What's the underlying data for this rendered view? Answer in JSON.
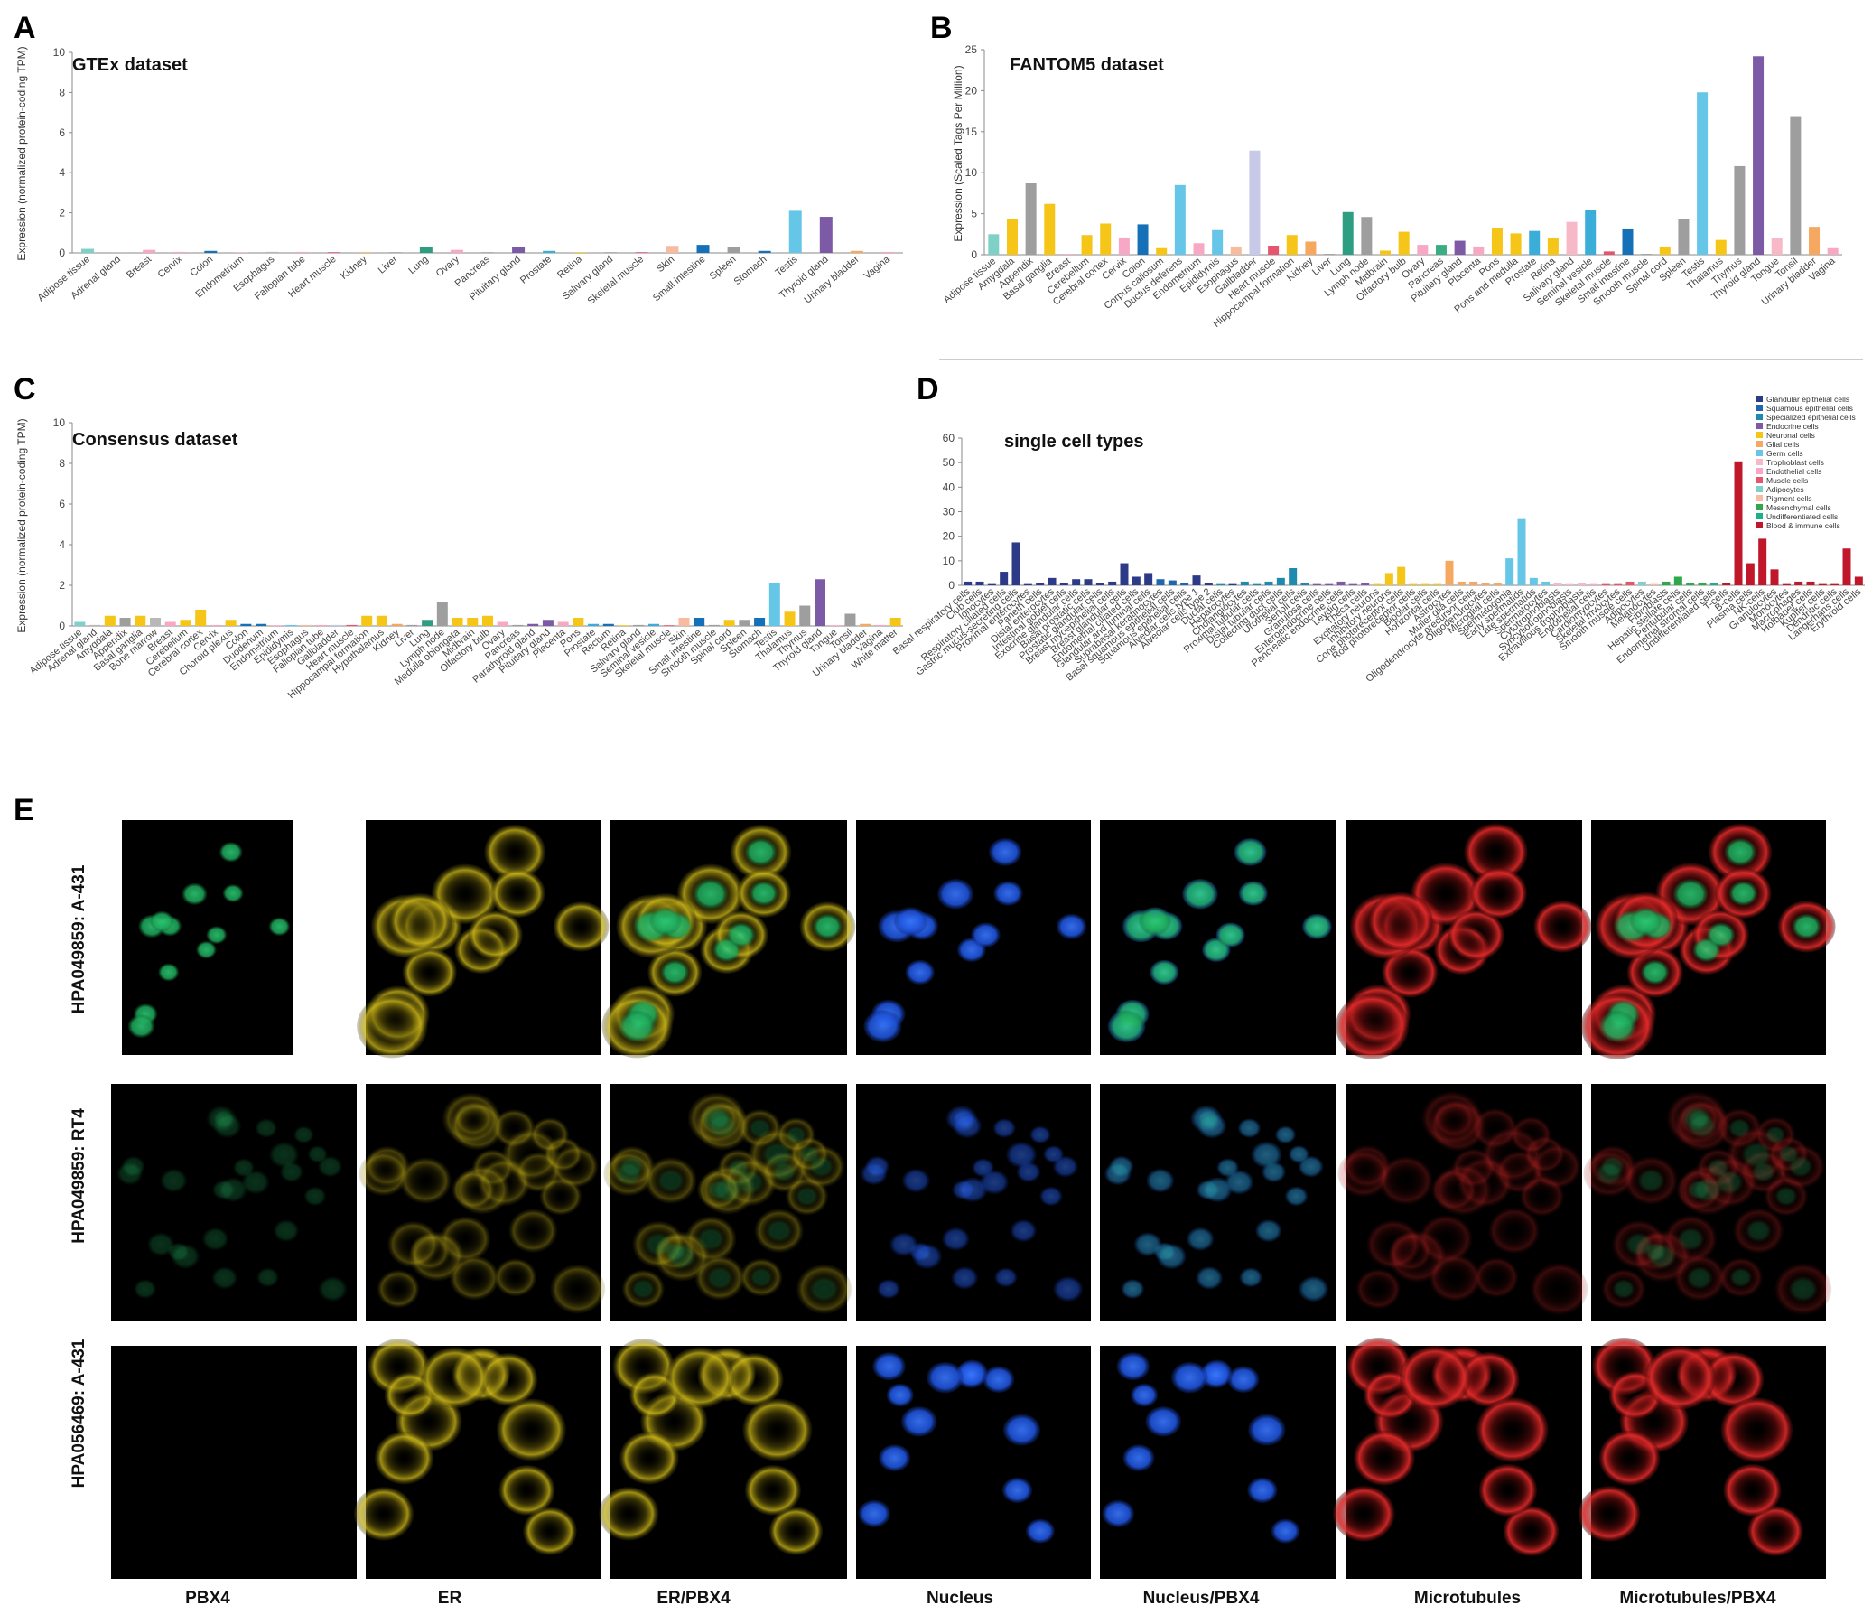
{
  "panel_letters": [
    "A",
    "B",
    "C",
    "D",
    "E"
  ],
  "chart_data": [
    {
      "id": "gtex",
      "type": "bar",
      "title": "GTEx dataset",
      "ylabel": "Expression (normalized protein-coding TPM)",
      "ylim": [
        0,
        10
      ],
      "yticks": [
        0,
        2,
        4,
        6,
        8,
        10
      ],
      "categories": [
        "Adipose tissue",
        "Adrenal gland",
        "Breast",
        "Cervix",
        "Colon",
        "Endometrium",
        "Esophagus",
        "Fallopian tube",
        "Heart muscle",
        "Kidney",
        "Liver",
        "Lung",
        "Ovary",
        "Pancreas",
        "Pituitary gland",
        "Prostate",
        "Retina",
        "Salivary gland",
        "Skeletal muscle",
        "Skin",
        "Small intestine",
        "Spleen",
        "Stomach",
        "Testis",
        "Thyroid gland",
        "Urinary bladder",
        "Vagina"
      ],
      "values": [
        0.2,
        0.02,
        0.15,
        0.05,
        0.1,
        0.02,
        0.05,
        0.05,
        0.02,
        0.05,
        0.02,
        0.3,
        0.15,
        0.02,
        0.3,
        0.1,
        0.02,
        0.02,
        0.02,
        0.35,
        0.4,
        0.3,
        0.1,
        2.1,
        1.8,
        0.1,
        0.05
      ],
      "colors": [
        "#7fd1c8",
        "#b8b8b8",
        "#f7a8c4",
        "#f7a8c4",
        "#1570b8",
        "#f7a8c4",
        "#b8b8b8",
        "#f7a8c4",
        "#e65570",
        "#f7c27f",
        "#9e9e9e",
        "#2e9e82",
        "#f7a8c4",
        "#9e9e9e",
        "#7d5aa6",
        "#3aaed8",
        "#f5c518",
        "#9e9e9e",
        "#e65570",
        "#f7bba0",
        "#1570b8",
        "#9e9e9e",
        "#1570b8",
        "#66c6e8",
        "#7d5aa6",
        "#f7a860",
        "#f7a8c4"
      ]
    },
    {
      "id": "fantom5",
      "type": "bar",
      "title": "FANTOM5 dataset",
      "ylabel": "Expression (Scaled Tags Per Million)",
      "ylim": [
        0,
        25
      ],
      "yticks": [
        0,
        5,
        10,
        15,
        20,
        25
      ],
      "categories": [
        "Adipose tissue",
        "Amygdala",
        "Appendix",
        "Basal ganglia",
        "Breast",
        "Cerebellum",
        "Cerebral cortex",
        "Cervix",
        "Colon",
        "Corpus callosum",
        "Ductus deferens",
        "Endometrium",
        "Epididymis",
        "Esophagus",
        "Gallbladder",
        "Heart muscle",
        "Hippocampal formation",
        "Kidney",
        "Liver",
        "Lung",
        "Lymph node",
        "Midbrain",
        "Olfactory bulb",
        "Ovary",
        "Pancreas",
        "Pituitary gland",
        "Placenta",
        "Pons",
        "Pons and medulla",
        "Prostate",
        "Retina",
        "Salivary gland",
        "Seminal vesicle",
        "Skeletal muscle",
        "Small intestine",
        "Smooth muscle",
        "Spinal cord",
        "Spleen",
        "Testis",
        "Thalamus",
        "Thymus",
        "Thyroid gland",
        "Tongue",
        "Tonsil",
        "Urinary bladder",
        "Vagina"
      ],
      "values": [
        2.5,
        4.4,
        8.7,
        6.2,
        0.1,
        2.4,
        3.8,
        2.1,
        3.7,
        0.8,
        8.5,
        1.4,
        3.0,
        1.0,
        12.7,
        1.1,
        2.4,
        1.6,
        0.1,
        5.2,
        4.6,
        0.5,
        2.8,
        1.2,
        1.2,
        1.7,
        1.0,
        3.3,
        2.6,
        2.9,
        2.0,
        4.0,
        5.4,
        0.4,
        3.2,
        0.1,
        1.0,
        4.3,
        19.8,
        1.8,
        10.8,
        24.2,
        2.0,
        16.9,
        3.4,
        0.8
      ],
      "colors": [
        "#7fd1c8",
        "#f5c518",
        "#9e9e9e",
        "#f5c518",
        "#f7a8c4",
        "#f5c518",
        "#f5c518",
        "#f7a8c4",
        "#1570b8",
        "#f5c518",
        "#66c6e8",
        "#f7a8c4",
        "#66c6e8",
        "#f7bba0",
        "#c8c8e8",
        "#e65570",
        "#f5c518",
        "#f7a860",
        "#9e9e9e",
        "#2e9e82",
        "#9e9e9e",
        "#f5c518",
        "#f5c518",
        "#f7a8c4",
        "#3aae82",
        "#7d5aa6",
        "#f7a8c4",
        "#f5c518",
        "#f5c518",
        "#3aaed8",
        "#f5c518",
        "#f7b8c8",
        "#3aaed8",
        "#e65570",
        "#1570b8",
        "#9e9e9e",
        "#f5c518",
        "#9e9e9e",
        "#66c6e8",
        "#f5c518",
        "#9e9e9e",
        "#7d5aa6",
        "#f7b8c8",
        "#9e9e9e",
        "#f7a860",
        "#f7a8c4"
      ]
    },
    {
      "id": "consensus",
      "type": "bar",
      "title": "Consensus dataset",
      "ylabel": "Expression (normalized protein-coding TPM)",
      "ylim": [
        0,
        10
      ],
      "yticks": [
        0,
        2,
        4,
        6,
        8,
        10
      ],
      "categories": [
        "Adipose tissue",
        "Adrenal gland",
        "Amygdala",
        "Appendix",
        "Basal ganglia",
        "Bone marrow",
        "Breast",
        "Cerebellum",
        "Cerebral cortex",
        "Cervix",
        "Choroid plexus",
        "Colon",
        "Duodenum",
        "Endometrium",
        "Epididymis",
        "Esophagus",
        "Fallopian tube",
        "Gallbladder",
        "Heart muscle",
        "Hippocampal formation",
        "Hypothalamus",
        "Kidney",
        "Liver",
        "Lung",
        "Lymph node",
        "Medulla oblongata",
        "Midbrain",
        "Olfactory bulb",
        "Ovary",
        "Pancreas",
        "Parathyroid gland",
        "Pituitary gland",
        "Placenta",
        "Pons",
        "Prostate",
        "Rectum",
        "Retina",
        "Salivary gland",
        "Seminal vesicle",
        "Skeletal muscle",
        "Skin",
        "Small intestine",
        "Smooth muscle",
        "Spinal cord",
        "Spleen",
        "Stomach",
        "Testis",
        "Thalamus",
        "Thymus",
        "Thyroid gland",
        "Tongue",
        "Tonsil",
        "Urinary bladder",
        "Vagina",
        "White matter"
      ],
      "values": [
        0.2,
        0.05,
        0.5,
        0.4,
        0.5,
        0.4,
        0.2,
        0.3,
        0.8,
        0.05,
        0.3,
        0.1,
        0.1,
        0.02,
        0.05,
        0.05,
        0.05,
        0.05,
        0.05,
        0.5,
        0.5,
        0.1,
        0.05,
        0.3,
        1.2,
        0.4,
        0.4,
        0.5,
        0.2,
        0.05,
        0.1,
        0.3,
        0.2,
        0.4,
        0.1,
        0.1,
        0.02,
        0.05,
        0.1,
        0.02,
        0.4,
        0.4,
        0.05,
        0.3,
        0.3,
        0.4,
        2.1,
        0.7,
        1.0,
        2.3,
        0.05,
        0.6,
        0.1,
        0.05,
        0.4
      ],
      "colors": [
        "#7fd1c8",
        "#b8b8b8",
        "#f5c518",
        "#9e9e9e",
        "#f5c518",
        "#b8b8b8",
        "#f7a8c4",
        "#f5c518",
        "#f5c518",
        "#f7a8c4",
        "#f5c518",
        "#1570b8",
        "#1570b8",
        "#f7a8c4",
        "#66c6e8",
        "#f7bba0",
        "#f7a8c4",
        "#c8c8e8",
        "#e65570",
        "#f5c518",
        "#f5c518",
        "#f7a860",
        "#9e9e9e",
        "#2e9e82",
        "#9e9e9e",
        "#f5c518",
        "#f5c518",
        "#f5c518",
        "#f7a8c4",
        "#9e9e9e",
        "#7d5aa6",
        "#7d5aa6",
        "#f7a8c4",
        "#f5c518",
        "#3aaed8",
        "#1570b8",
        "#f5c518",
        "#9e9e9e",
        "#3aaed8",
        "#e65570",
        "#f7bba0",
        "#1570b8",
        "#9e9e9e",
        "#f5c518",
        "#9e9e9e",
        "#1570b8",
        "#66c6e8",
        "#f5c518",
        "#9e9e9e",
        "#7d5aa6",
        "#f7b8c8",
        "#9e9e9e",
        "#f7a860",
        "#f7a8c4",
        "#f5c518"
      ]
    },
    {
      "id": "singlecell",
      "type": "bar",
      "title": "single cell types",
      "ylim": [
        0,
        60
      ],
      "yticks": [
        0,
        10,
        20,
        30,
        40,
        50,
        60
      ],
      "categories": [
        "Basal respiratory cells",
        "Club cells",
        "Ionocytes",
        "Respiratory ciliated cells",
        "Gastric mucus-secreting cells",
        "Proximal enterocytes",
        "Paneth cells",
        "Distal enterocytes",
        "Intestinal goblet cells",
        "Exocrine glandular cells",
        "Basal prostatic cells",
        "Prostatic glandular cells",
        "Breast myoepithelial cells",
        "Breast glandular cells",
        "Endometrial ciliated cells",
        "Glandular and luminal cells",
        "Suprabasal keratinocytes",
        "Basal squamous epithelial cells",
        "Squamous epithelial cells",
        "Alveolar cells type 1",
        "Alveolar cells type 2",
        "Ductal cells",
        "Hepatocytes",
        "Cholangiocytes",
        "Proximal tubular cells",
        "Distal tubular cells",
        "Collecting duct cells",
        "Urothelial cells",
        "Sertoli cells",
        "Granulosa cells",
        "Enteroendocrine cells",
        "Pancreatic endocrine cells",
        "Leydig cells",
        "Theca cells",
        "Excitatory neurons",
        "Inhibitory neurons",
        "Cone photoreceptor cells",
        "Rod photoreceptor cells",
        "Bipolar cells",
        "Horizontal cells",
        "Astrocytes",
        "Muller glia cells",
        "Oligodendrocyte precursor cells",
        "Oligodendrocytes",
        "Microglial cells",
        "Spermatogonia",
        "Early spermatids",
        "Late spermatids",
        "Spermatocytes",
        "Cytotrophoblasts",
        "Syncytiotrophoblasts",
        "Extravillous trophoblasts",
        "Endothelial cells",
        "Cardiomyocytes",
        "Skeletal myocytes",
        "Smooth muscle cells",
        "Adipocytes",
        "Melanocytes",
        "Fibroblasts",
        "Hepatic stellate cells",
        "Peritubular cells",
        "Endometrial stromal cells",
        "Undifferentiated cells",
        "T-cells",
        "B-cells",
        "Plasma cells",
        "NK-cells",
        "Granulocytes",
        "Monocytes",
        "Macrophages",
        "Hofbauer cells",
        "Kupffer cells",
        "Dendritic cells",
        "Langerhans cells",
        "Erythroid cells"
      ],
      "values": [
        1.5,
        1.5,
        0.5,
        5.5,
        17.5,
        0.5,
        1,
        3,
        1,
        2.5,
        2.5,
        1,
        1.5,
        9,
        3.5,
        5,
        2.5,
        2,
        1,
        4,
        1,
        0.5,
        0.5,
        1.5,
        0.5,
        1.5,
        3,
        7,
        1,
        0.5,
        0.5,
        1.5,
        0.5,
        1,
        0.5,
        5,
        7.5,
        0.5,
        0.5,
        0.5,
        10,
        1.5,
        1.5,
        1,
        1,
        11,
        27,
        3,
        1.5,
        1,
        0.5,
        1,
        0.5,
        0.5,
        0.5,
        1.5,
        1.5,
        0.5,
        1.5,
        3.5,
        1,
        1,
        1,
        1,
        50.5,
        9,
        19,
        6.5,
        0.5,
        1.5,
        1.5,
        0.5,
        0.5,
        15,
        3.5
      ],
      "colors": [
        "#2d3a88",
        "#2d3a88",
        "#2d3a88",
        "#2d3a88",
        "#2d3a88",
        "#2d3a88",
        "#2d3a88",
        "#2d3a88",
        "#2d3a88",
        "#2d3a88",
        "#2d3a88",
        "#2d3a88",
        "#2d3a88",
        "#2d3a88",
        "#2d3a88",
        "#2d3a88",
        "#1f66b0",
        "#1f66b0",
        "#1f66b0",
        "#2d3a88",
        "#2d3a88",
        "#1f8ab0",
        "#2d3a88",
        "#1f8ab0",
        "#1f8ab0",
        "#1f8ab0",
        "#1f8ab0",
        "#1f8ab0",
        "#1f8ab0",
        "#7d5aa6",
        "#7d5aa6",
        "#7d5aa6",
        "#7d5aa6",
        "#7d5aa6",
        "#f5c518",
        "#f5c518",
        "#f5c518",
        "#f5c518",
        "#f5c518",
        "#f5c518",
        "#f7a860",
        "#f7a860",
        "#f7a860",
        "#f7a860",
        "#f7a860",
        "#66c6e8",
        "#66c6e8",
        "#66c6e8",
        "#66c6e8",
        "#f7b8c8",
        "#f7b8c8",
        "#f7b8c8",
        "#f7a8c4",
        "#e65570",
        "#e65570",
        "#e65570",
        "#7fd1c8",
        "#f7bba0",
        "#2ea84a",
        "#2ea84a",
        "#2ea84a",
        "#2ea84a",
        "#1fae86",
        "#c0182a",
        "#c0182a",
        "#c0182a",
        "#c0182a",
        "#c0182a",
        "#c0182a",
        "#c0182a",
        "#c0182a",
        "#c0182a",
        "#c0182a",
        "#c0182a",
        "#c0182a"
      ],
      "legend": [
        {
          "label": "Glandular epithelial cells",
          "color": "#2d3a88"
        },
        {
          "label": "Squamous epithelial cells",
          "color": "#1f66b0"
        },
        {
          "label": "Specialized epithelial cells",
          "color": "#1f8ab0"
        },
        {
          "label": "Endocrine cells",
          "color": "#7d5aa6"
        },
        {
          "label": "Neuronal cells",
          "color": "#f5c518"
        },
        {
          "label": "Glial cells",
          "color": "#f7a860"
        },
        {
          "label": "Germ cells",
          "color": "#66c6e8"
        },
        {
          "label": "Trophoblast cells",
          "color": "#f7b8c8"
        },
        {
          "label": "Endothelial cells",
          "color": "#f7a8c4"
        },
        {
          "label": "Muscle cells",
          "color": "#e65570"
        },
        {
          "label": "Adipocytes",
          "color": "#7fd1c8"
        },
        {
          "label": "Pigment cells",
          "color": "#f7bba0"
        },
        {
          "label": "Mesenchymal cells",
          "color": "#2ea84a"
        },
        {
          "label": "Undifferentiated cells",
          "color": "#1fae86"
        },
        {
          "label": "Blood & immune cells",
          "color": "#c0182a"
        }
      ],
      "legend_position": "top-right"
    }
  ],
  "microscopy": {
    "rows": [
      "HPA049859: A-431",
      "HPA049859: RT4",
      "HPA056469: A-431"
    ],
    "columns": [
      "PBX4",
      "ER",
      "ER/PBX4",
      "Nucleus",
      "Nucleus/PBX4",
      "Microtubules",
      "Microtubules/PBX4"
    ],
    "channel_colors": {
      "pbx4": "#1ea85a",
      "er": "#d8c21a",
      "nucleus": "#1e52d8",
      "microtubules": "#d81e1e"
    }
  }
}
